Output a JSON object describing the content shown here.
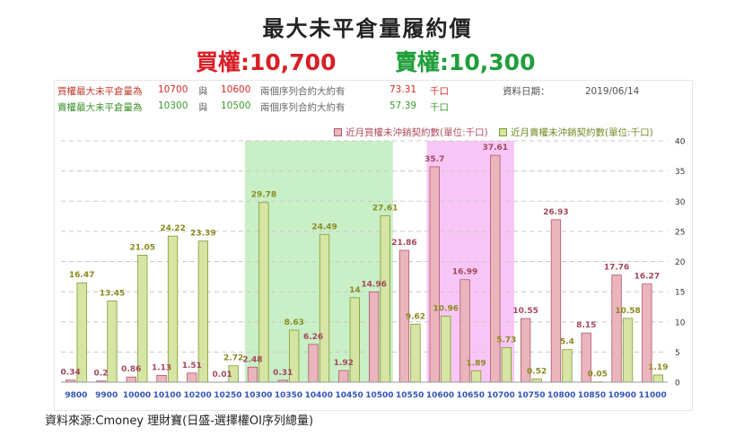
{
  "title": "最大未平倉量履約價",
  "subtitle": {
    "call": "買權:10,700",
    "put": "賣權:10,300"
  },
  "info": {
    "call": {
      "label": "買權最大未平倉量為",
      "strike": "10700",
      "sep": "與",
      "strike2": "10600",
      "text": "兩個序列合約大約有",
      "value": "73.31",
      "unit": "千口"
    },
    "put": {
      "label": "賣權最大未平倉量為",
      "strike": "10300",
      "sep": "與",
      "strike2": "10500",
      "text": "兩個序列合約大約有",
      "value": "57.39",
      "unit": "千口"
    },
    "date_label": "資料日期：",
    "date": "2019/06/14"
  },
  "source": "資料來源:Cmoney 理財寶(日盛-選擇權OI序列總量)",
  "colors": {
    "call": "#eab5bd",
    "call_stroke": "#b0556a",
    "put": "#d6e4a4",
    "put_stroke": "#7f9a2f",
    "highlight_put": "#c9efc6",
    "highlight_call": "#f8c6f6",
    "axis_label": "#3355bb"
  },
  "chart_data": {
    "type": "bar",
    "categories": [
      "9800",
      "9900",
      "10000",
      "10100",
      "10200",
      "10250",
      "10300",
      "10350",
      "10400",
      "10450",
      "10500",
      "10550",
      "10600",
      "10650",
      "10700",
      "10750",
      "10800",
      "10850",
      "10900",
      "11000"
    ],
    "series": [
      {
        "name": "近月買權未沖銷契約數(單位:千口)",
        "values": [
          0.34,
          0.2,
          0.86,
          1.13,
          1.51,
          0.01,
          2.48,
          0.31,
          6.26,
          1.92,
          14.96,
          21.86,
          35.7,
          16.99,
          37.61,
          10.55,
          26.93,
          8.15,
          17.76,
          16.27
        ]
      },
      {
        "name": "近月賣權未沖銷契約數(單位:千口)",
        "values": [
          16.47,
          13.45,
          21.05,
          24.22,
          23.39,
          2.72,
          29.78,
          8.63,
          24.49,
          14,
          27.61,
          9.62,
          10.96,
          1.89,
          5.73,
          0.52,
          5.4,
          0.05,
          10.58,
          1.19
        ]
      }
    ],
    "ylim": [
      0,
      40
    ],
    "yticks": [
      0,
      5,
      10,
      15,
      20,
      25,
      30,
      35,
      40
    ],
    "highlight_ranges": [
      {
        "from": "10300",
        "to": "10500",
        "series": "put"
      },
      {
        "from": "10600",
        "to": "10700",
        "series": "call"
      }
    ],
    "grid": true,
    "legend": "top-right"
  }
}
